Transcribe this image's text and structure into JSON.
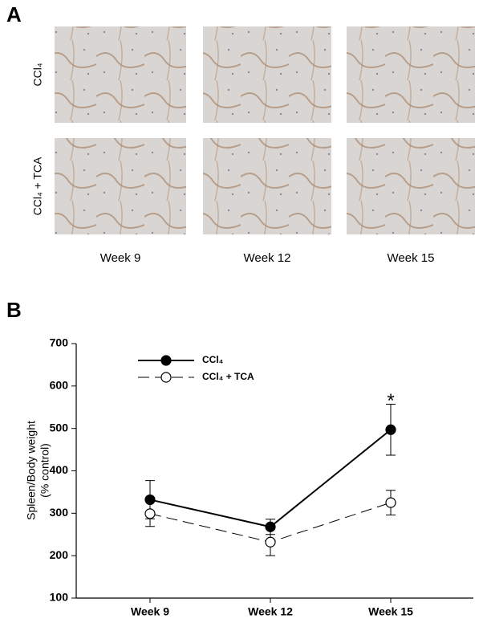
{
  "panel_a": {
    "label": "A",
    "row_labels": [
      "CCl₄",
      "CCl₄ + TCA"
    ],
    "column_labels": [
      "Week 9",
      "Week 12",
      "Week 15"
    ]
  },
  "chart_data": {
    "type": "line",
    "panel_label": "B",
    "ylabel": [
      "Spleen/Body weight",
      "(% control)"
    ],
    "categories": [
      "Week 9",
      "Week 12",
      "Week 15"
    ],
    "series": [
      {
        "name": "CCl₄",
        "color": "#000000",
        "dashed": false,
        "filled": true,
        "values": [
          332,
          268,
          497
        ],
        "errors": [
          45,
          18,
          60
        ]
      },
      {
        "name": "CCl₄ + TCA",
        "color": "#000000",
        "dashed": true,
        "filled": false,
        "values": [
          299,
          232,
          325
        ],
        "errors": [
          30,
          32,
          29
        ]
      }
    ],
    "annotations": [
      {
        "text": "*",
        "category": 2,
        "value": 570
      }
    ],
    "ylim": [
      100,
      700
    ],
    "yticks": [
      100,
      200,
      300,
      400,
      500,
      600,
      700
    ]
  }
}
